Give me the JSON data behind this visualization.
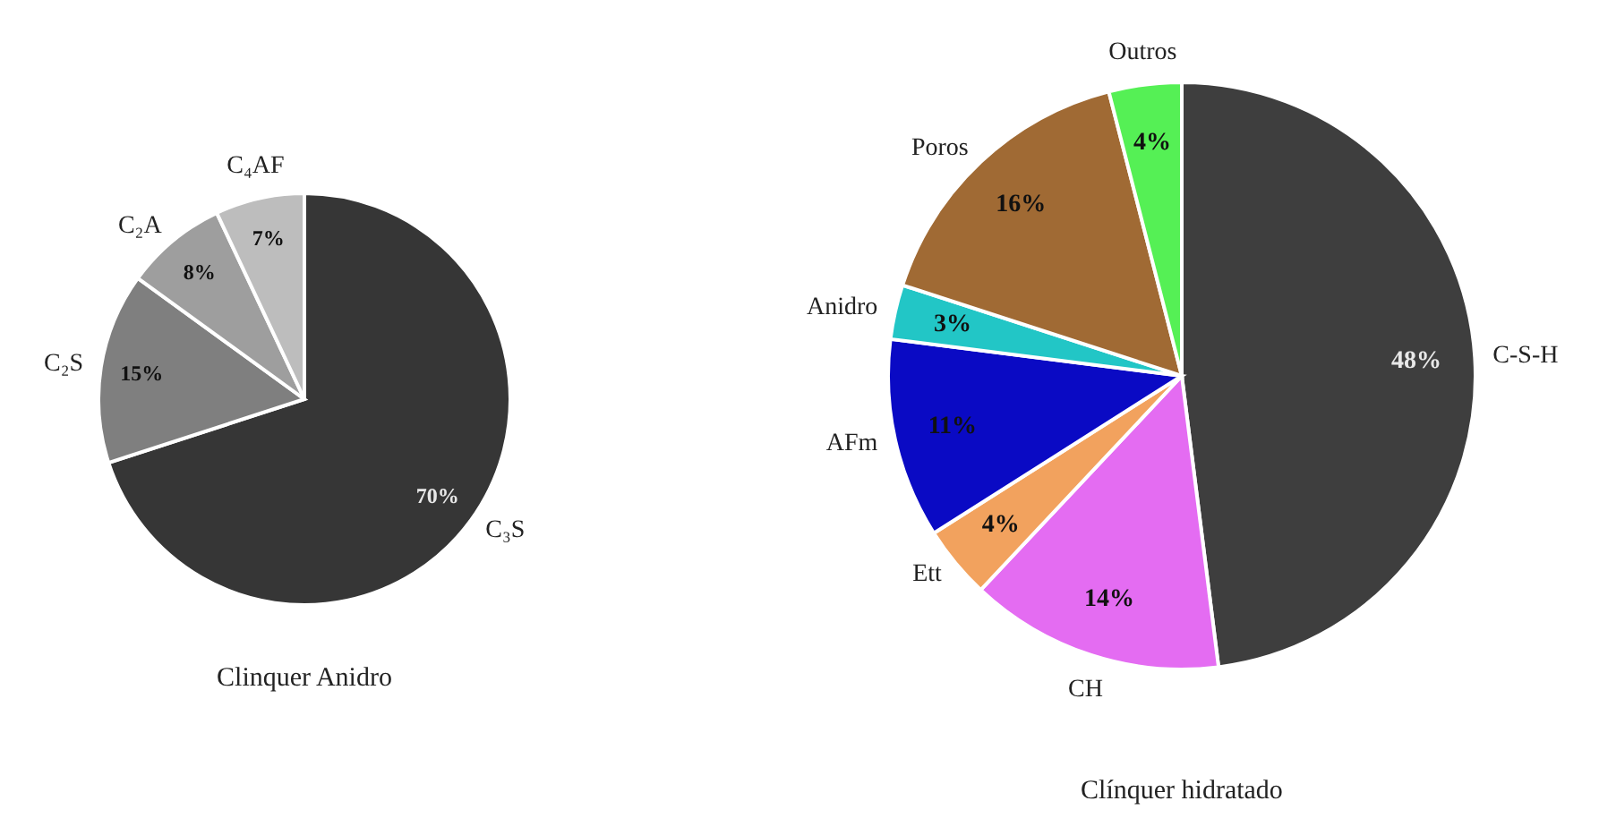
{
  "chart_data": [
    {
      "type": "pie",
      "title": "Clinquer Anidro",
      "categories": [
        "C₃S",
        "C₂S",
        "C₂A",
        "C₄AF"
      ],
      "values": [
        70,
        15,
        8,
        7
      ],
      "value_labels": [
        "70%",
        "15%",
        "8%",
        "7%"
      ],
      "colors": [
        "#363636",
        "#7f7f7f",
        "#9e9e9e",
        "#bdbdbd"
      ]
    },
    {
      "type": "pie",
      "title": "Clínquer hidratado",
      "categories": [
        "C-S-H",
        "CH",
        "Ett",
        "AFm",
        "Anidro",
        "Poros",
        "Outros"
      ],
      "values": [
        48,
        14,
        4,
        11,
        3,
        16,
        4
      ],
      "value_labels": [
        "48%",
        "14%",
        "4%",
        "11%",
        "3%",
        "16%",
        "4%"
      ],
      "colors": [
        "#3e3e3e",
        "#e46cf2",
        "#f2a25e",
        "#0a0ac4",
        "#22c6c6",
        "#a06a34",
        "#55f055"
      ]
    }
  ]
}
